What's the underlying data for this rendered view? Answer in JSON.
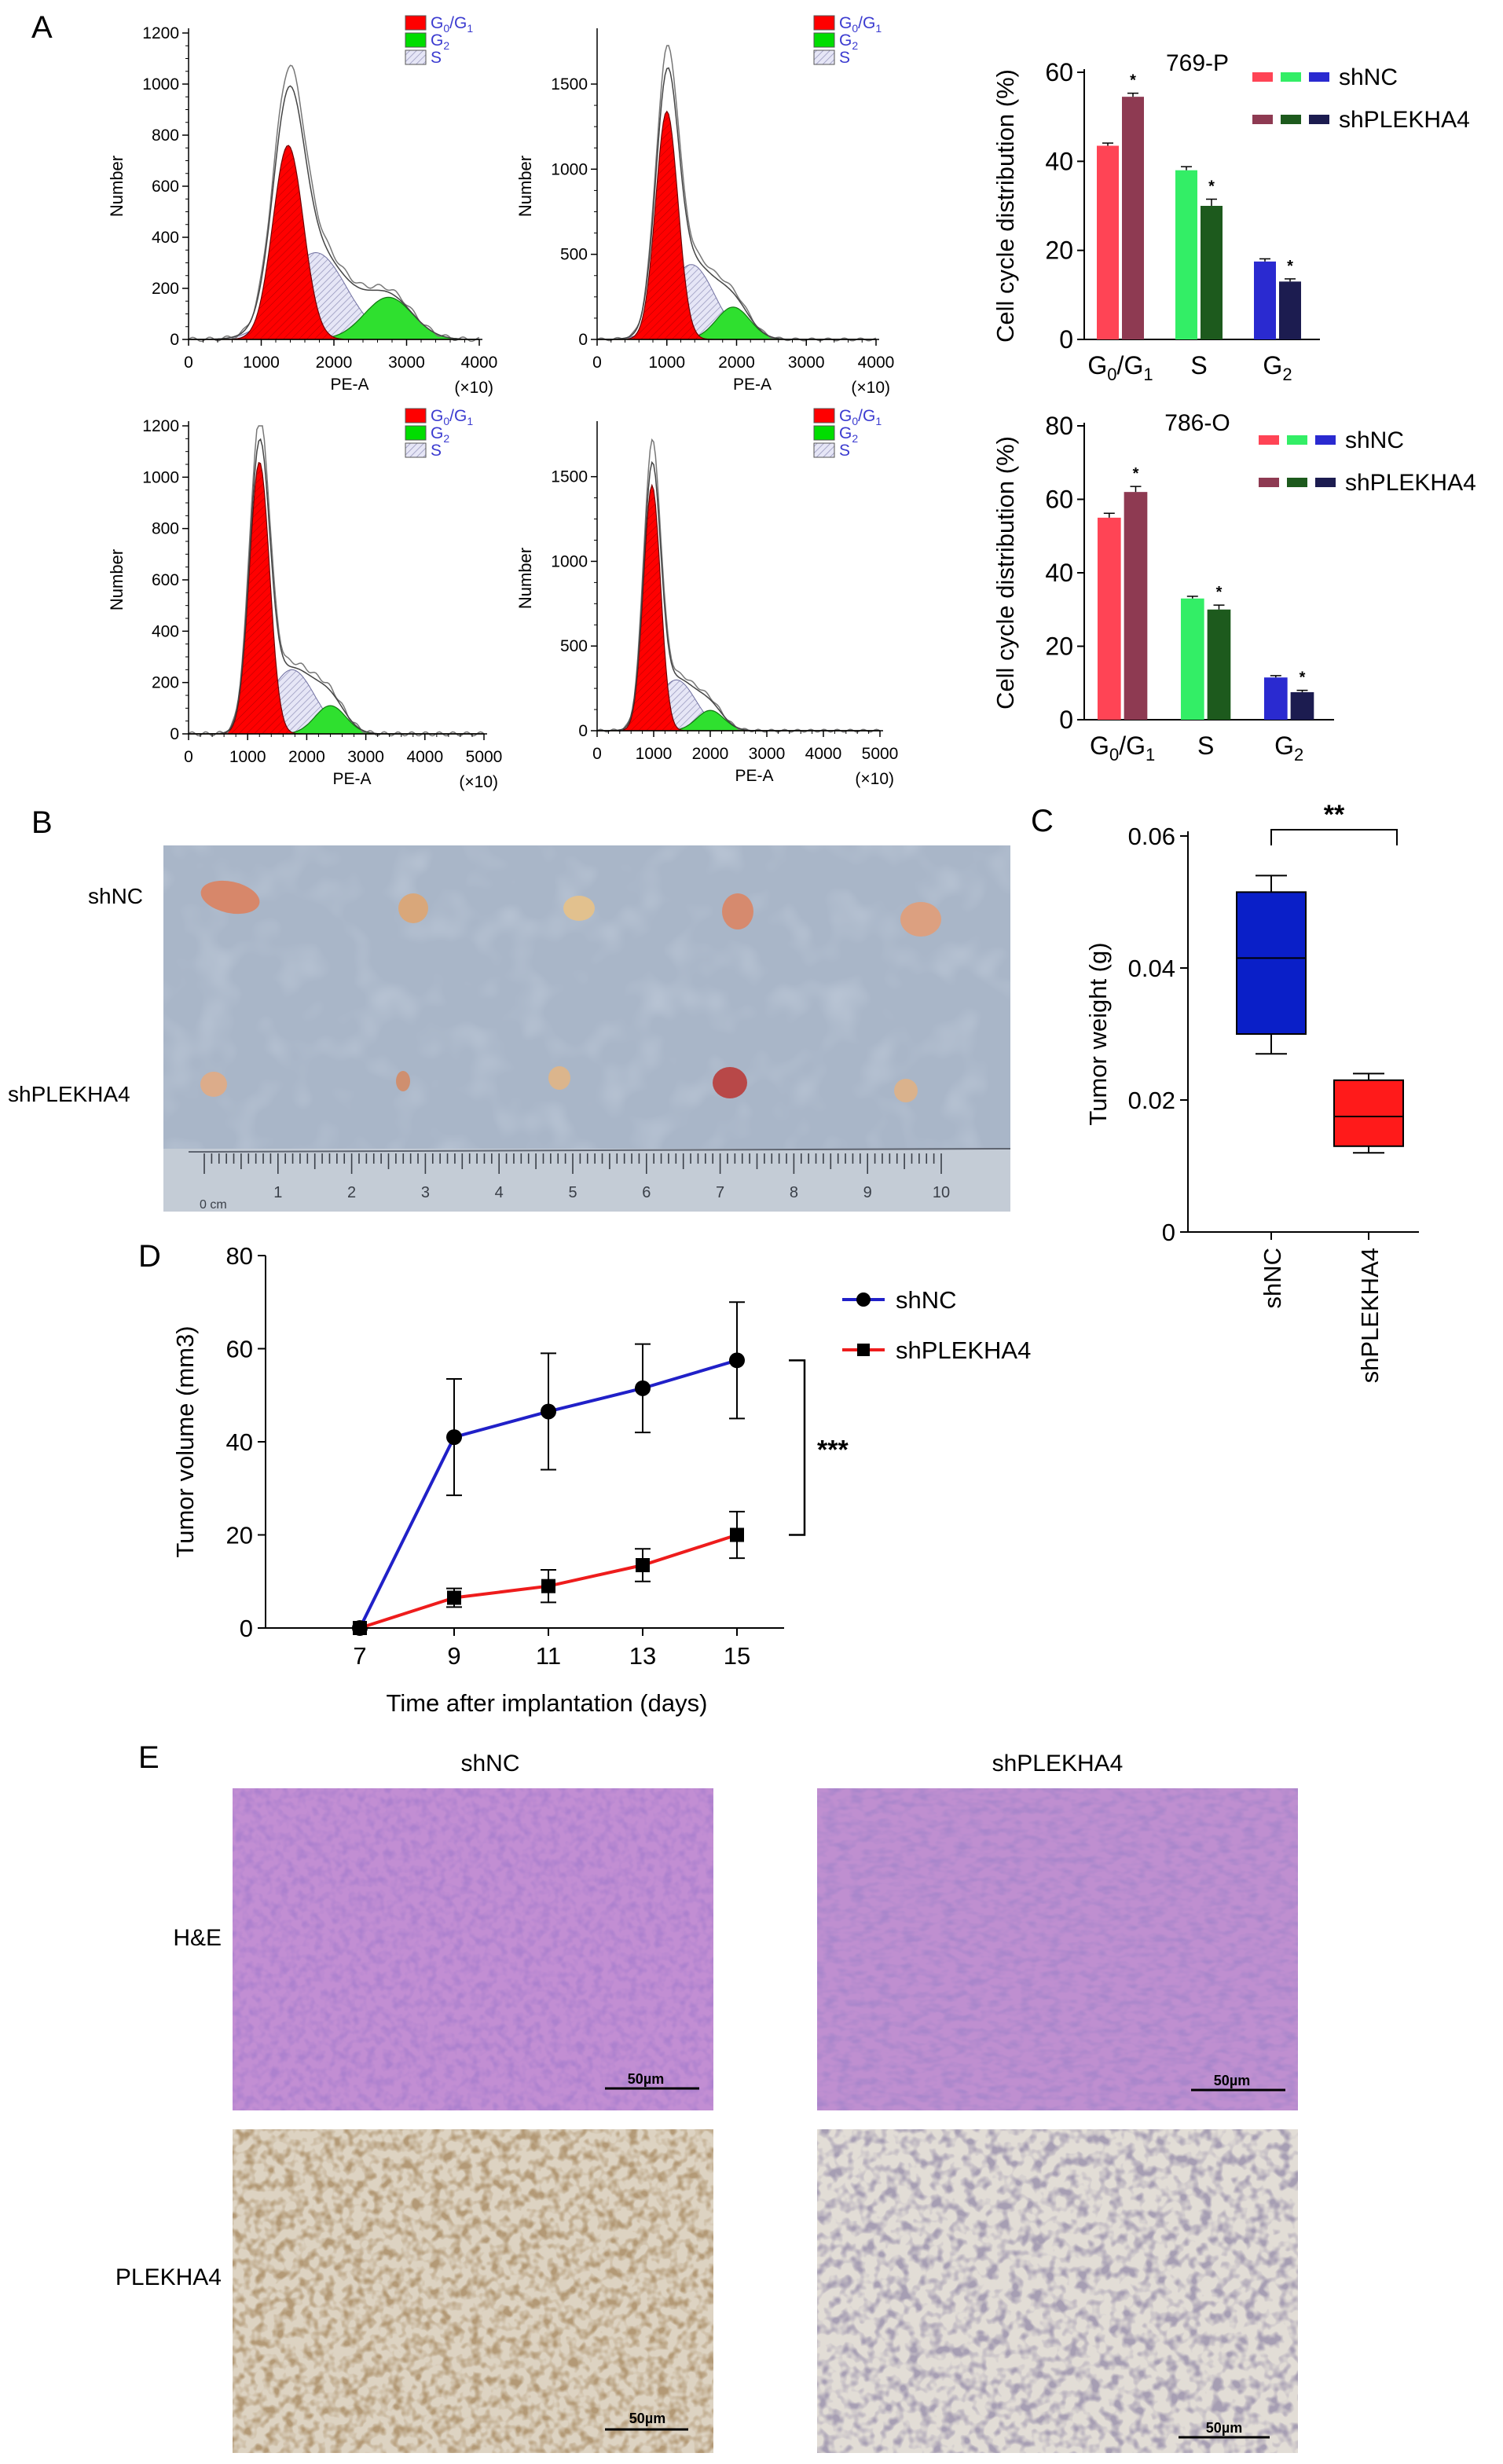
{
  "panels": {
    "A": {
      "letter": "A",
      "histograms": [
        {
          "id": "h1",
          "ylabel": "Number",
          "xlabel": "PE-A",
          "xscale_note": "(×10)",
          "x_ticks": [
            "0",
            "1000",
            "2000",
            "3000",
            "4000"
          ],
          "y_ticks": [
            "0",
            "200",
            "400",
            "600",
            "800",
            "1000",
            "1200"
          ],
          "xlim": [
            0,
            4000
          ],
          "ylim": [
            0,
            1200
          ],
          "legend": [
            {
              "label": "G0/G1",
              "color": "#ff0000"
            },
            {
              "label": "G2",
              "color": "#00dd00"
            },
            {
              "label": "S",
              "color": "#d8d8f0"
            }
          ],
          "components": [
            {
              "type": "G0/G1",
              "mu": 1370,
              "sigma": 210,
              "amp": 760
            },
            {
              "type": "S",
              "mu": 1750,
              "sigma": 420,
              "amp": 340
            },
            {
              "type": "G2",
              "mu": 2750,
              "sigma": 330,
              "amp": 165
            }
          ]
        },
        {
          "id": "h2",
          "ylabel": "Number",
          "xlabel": "PE-A",
          "xscale_note": "(×10)",
          "x_ticks": [
            "0",
            "1000",
            "2000",
            "3000",
            "4000"
          ],
          "y_ticks": [
            "0",
            "500",
            "1000",
            "1500"
          ],
          "xlim": [
            0,
            4000
          ],
          "ylim": [
            0,
            1800
          ],
          "legend": [
            {
              "label": "G0/G1",
              "color": "#ff0000"
            },
            {
              "label": "G2",
              "color": "#00dd00"
            },
            {
              "label": "S",
              "color": "#d8d8f0"
            }
          ],
          "components": [
            {
              "type": "G0/G1",
              "mu": 1000,
              "sigma": 160,
              "amp": 1340
            },
            {
              "type": "S",
              "mu": 1350,
              "sigma": 330,
              "amp": 440
            },
            {
              "type": "G2",
              "mu": 1950,
              "sigma": 240,
              "amp": 190
            }
          ]
        },
        {
          "id": "h3",
          "ylabel": "Number",
          "xlabel": "PE-A",
          "xscale_note": "(×10)",
          "x_ticks": [
            "0",
            "1000",
            "2000",
            "3000",
            "4000",
            "5000"
          ],
          "y_ticks": [
            "0",
            "200",
            "400",
            "600",
            "800",
            "1000",
            "1200"
          ],
          "xlim": [
            0,
            5000
          ],
          "ylim": [
            0,
            1200
          ],
          "legend": [
            {
              "label": "G0/G1",
              "color": "#ff0000"
            },
            {
              "label": "G2",
              "color": "#00dd00"
            },
            {
              "label": "S",
              "color": "#d8d8f0"
            }
          ],
          "components": [
            {
              "type": "G0/G1",
              "mu": 1200,
              "sigma": 170,
              "amp": 1060
            },
            {
              "type": "S",
              "mu": 1750,
              "sigma": 380,
              "amp": 250
            },
            {
              "type": "G2",
              "mu": 2400,
              "sigma": 260,
              "amp": 110
            }
          ]
        },
        {
          "id": "h4",
          "ylabel": "Number",
          "xlabel": "PE-A",
          "xscale_note": "(×10)",
          "x_ticks": [
            "0",
            "1000",
            "2000",
            "3000",
            "4000",
            "5000"
          ],
          "y_ticks": [
            "0",
            "500",
            "1000",
            "1500"
          ],
          "xlim": [
            0,
            5000
          ],
          "ylim": [
            0,
            1800
          ],
          "legend": [
            {
              "label": "G0/G1",
              "color": "#ff0000"
            },
            {
              "label": "G2",
              "color": "#00dd00"
            },
            {
              "label": "S",
              "color": "#d8d8f0"
            }
          ],
          "components": [
            {
              "type": "G0/G1",
              "mu": 970,
              "sigma": 150,
              "amp": 1450
            },
            {
              "type": "S",
              "mu": 1400,
              "sigma": 340,
              "amp": 300
            },
            {
              "type": "G2",
              "mu": 2000,
              "sigma": 240,
              "amp": 120
            }
          ]
        }
      ],
      "bar_charts": [
        {
          "id": "b1",
          "title": "769-P",
          "ylabel": "Cell cycle distribution (%)",
          "ylim": [
            0,
            60
          ],
          "y_ticks": [
            "0",
            "20",
            "40",
            "60"
          ],
          "legend": [
            {
              "label": "shNC",
              "colors": [
                "#ff4455",
                "#33ee66",
                "#2a2ad0"
              ]
            },
            {
              "label": "shPLEKHA4",
              "colors": [
                "#8e3a52",
                "#1d5a1d",
                "#1c1c50"
              ]
            }
          ],
          "categories": [
            "G0/G1",
            "S",
            "G2"
          ],
          "series": [
            {
              "name": "shNC",
              "values": [
                43.5,
                38.0,
                17.5
              ],
              "errors": [
                0.6,
                0.8,
                0.6
              ],
              "colors": [
                "#ff4455",
                "#33ee66",
                "#2a2ad0"
              ]
            },
            {
              "name": "shPLEKHA4",
              "values": [
                54.5,
                30.0,
                13.0
              ],
              "errors": [
                0.8,
                1.5,
                0.6
              ],
              "colors": [
                "#8e3a52",
                "#1d5a1d",
                "#1c1c50"
              ]
            }
          ],
          "significance": [
            "*",
            "*",
            "*"
          ]
        },
        {
          "id": "b2",
          "title": "786-O",
          "ylabel": "Cell cycle distribution (%)",
          "ylim": [
            0,
            80
          ],
          "y_ticks": [
            "0",
            "20",
            "40",
            "60",
            "80"
          ],
          "legend": [
            {
              "label": "shNC",
              "colors": [
                "#ff4455",
                "#33ee66",
                "#2a2ad0"
              ]
            },
            {
              "label": "shPLEKHA4",
              "colors": [
                "#8e3a52",
                "#1d5a1d",
                "#1c1c50"
              ]
            }
          ],
          "categories": [
            "G0/G1",
            "S",
            "G2"
          ],
          "series": [
            {
              "name": "shNC",
              "values": [
                55.0,
                33.0,
                11.5
              ],
              "errors": [
                1.2,
                0.6,
                0.5
              ],
              "colors": [
                "#ff4455",
                "#33ee66",
                "#2a2ad0"
              ]
            },
            {
              "name": "shPLEKHA4",
              "values": [
                62.0,
                30.0,
                7.5
              ],
              "errors": [
                1.5,
                1.2,
                0.5
              ],
              "colors": [
                "#8e3a52",
                "#1d5a1d",
                "#1c1c50"
              ]
            }
          ],
          "significance": [
            "*",
            "*",
            "*"
          ]
        }
      ]
    },
    "B": {
      "letter": "B",
      "row_labels": [
        "shNC",
        "shPLEKHA4"
      ],
      "ruler_unit": "0 cm",
      "ruler_ticks": [
        "1",
        "2",
        "3",
        "4",
        "5",
        "6",
        "7",
        "8",
        "9",
        "10"
      ]
    },
    "C": {
      "letter": "C",
      "ylabel": "Tumor weight (g)",
      "y_ticks": [
        "0",
        "0.02",
        "0.04",
        "0.06"
      ],
      "ylim": [
        0,
        0.06
      ],
      "categories": [
        "shNC",
        "shPLEKHA4"
      ],
      "boxes": [
        {
          "name": "shNC",
          "min": 0.027,
          "q1": 0.03,
          "median": 0.0415,
          "q3": 0.0515,
          "max": 0.054,
          "color": "#0a1fc8"
        },
        {
          "name": "shPLEKHA4",
          "min": 0.012,
          "q1": 0.013,
          "median": 0.0175,
          "q3": 0.023,
          "max": 0.024,
          "color": "#ff1a1a"
        }
      ],
      "significance": "**"
    },
    "D": {
      "letter": "D",
      "ylabel": "Tumor volume (mm3)",
      "xlabel": "Time after implantation (days)",
      "x": [
        7,
        9,
        11,
        13,
        15
      ],
      "x_ticks": [
        "7",
        "9",
        "11",
        "13",
        "15"
      ],
      "y_ticks": [
        "0",
        "20",
        "40",
        "60",
        "80"
      ],
      "ylim": [
        0,
        80
      ],
      "series": [
        {
          "name": "shNC",
          "values": [
            0,
            41,
            46.5,
            51.5,
            57.5
          ],
          "errors": [
            0,
            12.5,
            12.5,
            9.5,
            12.5
          ],
          "color": "#2020c8",
          "marker": "circle"
        },
        {
          "name": "shPLEKHA4",
          "values": [
            0,
            6.5,
            9,
            13.5,
            20
          ],
          "errors": [
            0,
            2,
            3.5,
            3.5,
            5
          ],
          "color": "#ee1c1c",
          "marker": "square"
        }
      ],
      "significance": "***"
    },
    "E": {
      "letter": "E",
      "col_labels": [
        "shNC",
        "shPLEKHA4"
      ],
      "row_labels": [
        "H&E",
        "PLEKHA4"
      ],
      "scale_bar": "50µm"
    }
  }
}
